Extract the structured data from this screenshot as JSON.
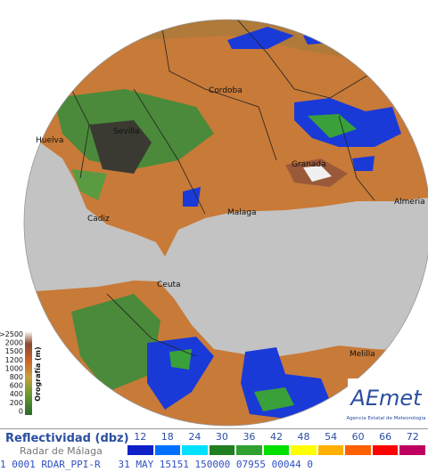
{
  "header": {
    "copyright": "© Agencia Estatal de Meteorología"
  },
  "cities": [
    "Cordoba",
    "Huelva",
    "Sevilla",
    "Granada",
    "Malaga",
    "Cadiz",
    "Almeria",
    "Ceuta",
    "Melilla"
  ],
  "orography": {
    "title": "Orografía (m)",
    "labels": [
      ">2500",
      "2000",
      "1500",
      "1200",
      "1000",
      "800",
      "600",
      "400",
      "200",
      "0"
    ]
  },
  "logo": {
    "name": "AEmet",
    "subtitle": "Agencia Estatal de Meteorología"
  },
  "legend": {
    "title": "Reflectividad (dbz)",
    "subtitle": "Radar de Málaga",
    "scale": [
      {
        "label": "12",
        "color": "#1020c8"
      },
      {
        "label": "18",
        "color": "#0070ff"
      },
      {
        "label": "24",
        "color": "#00e0ff"
      },
      {
        "label": "30",
        "color": "#208020"
      },
      {
        "label": "36",
        "color": "#30a030"
      },
      {
        "label": "42",
        "color": "#00e000"
      },
      {
        "label": "48",
        "color": "#ffff00"
      },
      {
        "label": "54",
        "color": "#ffb000"
      },
      {
        "label": "60",
        "color": "#ff6000"
      },
      {
        "label": "66",
        "color": "#ff0000"
      },
      {
        "label": "72",
        "color": "#c00060"
      }
    ]
  },
  "status": "1 0001 RDAR_PPI-R   31 MAY 15151 150000 07955 00044 0"
}
